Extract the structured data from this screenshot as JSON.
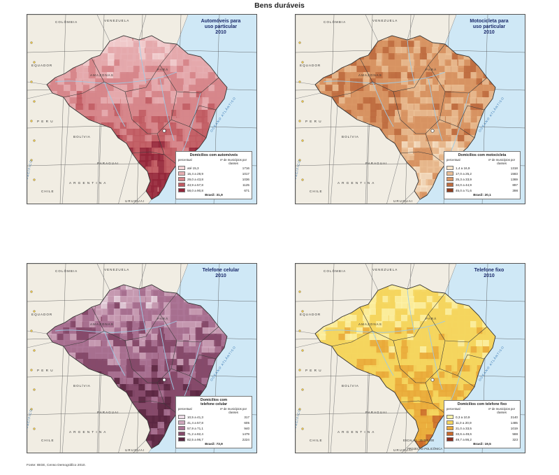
{
  "title": "Bens duráveis",
  "source": "Fonte: IBGE, Censo Demográfico 2010.",
  "place_labels": {
    "colombia": "COLÔMBIA",
    "venezuela": "VENEZUELA",
    "peru": "P E R U",
    "bolivia": "BOLÍVIA",
    "paraguai": "PARAGUAI",
    "argentina": "A R G E N T I N A",
    "uruguai": "URUGUAI",
    "equador": "EQUADOR",
    "chile": "CHILE",
    "amazonas": "AMAZONAS",
    "para": "PARÁ",
    "oceano_atlantico": "OCEANO ATLÂNTICO",
    "oceano_pacifico": "OCEANO PACÍFICO"
  },
  "scale": {
    "text": "ESCALA 1 : 35 000 000",
    "projection": "PROJEÇÃO POLICÔNICA"
  },
  "maps": [
    {
      "title_lines": [
        "Automóveis para",
        "uso particular",
        "2010"
      ],
      "land_color": "#d98a8c",
      "legend": {
        "title_lines": [
          "Domicílios com automóveis"
        ],
        "col_left": "percentual",
        "col_right": "nº de municípios por classes",
        "rows": [
          {
            "range": "até 15,3",
            "count": "1716",
            "color": "#f3d3d5"
          },
          {
            "range": "15,4 a 28,9",
            "count": "1017",
            "color": "#e6aeb1"
          },
          {
            "range": "29,0 a 43,8",
            "count": "1036",
            "color": "#d6868b"
          },
          {
            "range": "43,9 a 57,8",
            "count": "1125",
            "color": "#c05a62"
          },
          {
            "range": "58,0 a 90,8",
            "count": "671",
            "color": "#93263a"
          }
        ],
        "total": "Brasil: 31,9"
      }
    },
    {
      "title_lines": [
        "Motocicleta para",
        "uso particular",
        "2010"
      ],
      "land_color": "#c98152",
      "legend": {
        "title_lines": [
          "Domicílios com motocicleta"
        ],
        "col_left": "percentual",
        "col_right": "nº de municípios por classes",
        "rows": [
          {
            "range": "1,4 a 16,9",
            "count": "1318",
            "color": "#f7e3c8"
          },
          {
            "range": "17,0 a 25,2",
            "count": "1583",
            "color": "#ebbf95"
          },
          {
            "range": "25,3 a 33,9",
            "count": "1369",
            "color": "#d99665"
          },
          {
            "range": "34,0 a 44,9",
            "count": "897",
            "color": "#be6c3f"
          },
          {
            "range": "45,0 a 71,6",
            "count": "398",
            "color": "#8e3d1f"
          }
        ],
        "total": "Brasil: 20,1"
      }
    },
    {
      "title_lines": [
        "Telefone celular",
        "2010"
      ],
      "land_color": "#8c4a68",
      "legend": {
        "title_lines": [
          "Domicílios com",
          "telefone celular"
        ],
        "col_left": "percentual",
        "col_right": "nº de municípios por classes",
        "rows": [
          {
            "range": "10,5 a 41,3",
            "count": "317",
            "color": "#ecdbe5"
          },
          {
            "range": "41,4 a 57,8",
            "count": "605",
            "color": "#cfa7bd"
          },
          {
            "range": "57,9 a 71,1",
            "count": "940",
            "color": "#ab7696"
          },
          {
            "range": "71,2 a 82,4",
            "count": "1479",
            "color": "#854a6b"
          },
          {
            "range": "82,5 a 96,7",
            "count": "2224",
            "color": "#5a2742"
          }
        ],
        "total": "Brasil: 73,9"
      }
    },
    {
      "title_lines": [
        "Telefone fixo",
        "2010"
      ],
      "land_color": "#f4cf5a",
      "legend": {
        "title_lines": [
          "Domicílios com telefone fixo"
        ],
        "col_left": "percentual",
        "col_right": "nº de municípios por classes",
        "rows": [
          {
            "range": "0,3 a 10,9",
            "count": "2140",
            "color": "#fbf1a6"
          },
          {
            "range": "11,0 a 20,9",
            "count": "1485",
            "color": "#f5d65f"
          },
          {
            "range": "21,0 a 33,5",
            "count": "1019",
            "color": "#e9a93a"
          },
          {
            "range": "33,6 a 49,6",
            "count": "588",
            "color": "#c9682a"
          },
          {
            "range": "49,7 a 86,2",
            "count": "323",
            "color": "#8e2e1f"
          }
        ],
        "total": "Brasil: 19,5"
      }
    }
  ]
}
